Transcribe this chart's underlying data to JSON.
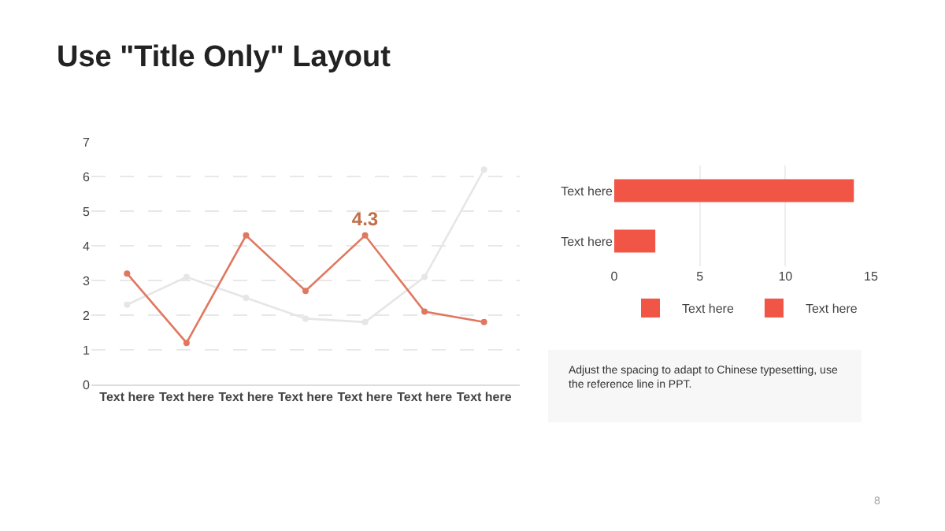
{
  "chart_data": [
    {
      "type": "line",
      "title": "Use \"Title Only\" Layout",
      "categories": [
        "Text here",
        "Text here",
        "Text here",
        "Text here",
        "Text here",
        "Text here",
        "Text here"
      ],
      "series": [
        {
          "color": "#e07860",
          "values": [
            3.2,
            1.2,
            4.3,
            2.7,
            4.3,
            2.1,
            1.8
          ],
          "value_labels": [
            null,
            null,
            null,
            null,
            "4.3",
            null,
            null
          ]
        },
        {
          "color": "#e6e6e6",
          "values": [
            2.3,
            3.1,
            2.5,
            1.9,
            1.8,
            3.1,
            6.2
          ]
        }
      ],
      "ylim": [
        0,
        7
      ],
      "yticks": [
        0,
        1,
        2,
        3,
        4,
        5,
        6,
        7
      ],
      "grid": "y",
      "marker": "circle",
      "line_style": "solid",
      "legend": false
    },
    {
      "type": "bar",
      "orientation": "horizontal",
      "categories": [
        "Text here",
        "Text here"
      ],
      "series": [
        {
          "name": "Text here",
          "color": "#f05545",
          "values": [
            14,
            null
          ]
        },
        {
          "name": "Text here",
          "color": "#f05545",
          "values": [
            null,
            2.4
          ]
        }
      ],
      "xlim": [
        0,
        15
      ],
      "xticks": [
        0,
        5,
        10,
        15
      ],
      "grid": "x",
      "legend": "bottom"
    },
    {
      "type": "other",
      "annotations": [
        "Adjust the spacing to adapt to Chinese typesetting, use the reference line in PPT.",
        "8"
      ]
    }
  ]
}
